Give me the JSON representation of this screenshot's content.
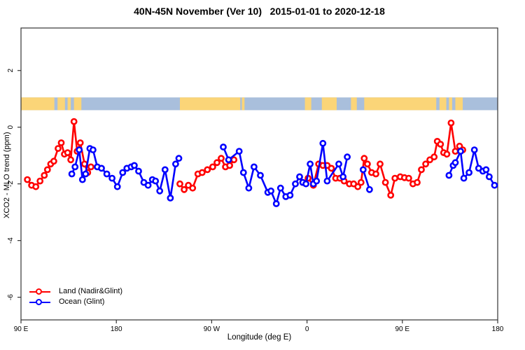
{
  "title": "40N-45N November (Ver 10)   2015-01-01 to 2020-12-18",
  "chart_data": {
    "type": "line",
    "title": "40N-45N November (Ver 10)   2015-01-01 to 2020-12-18",
    "xlabel": "Longitude (deg E)",
    "ylabel": "XCO2 - MLO trend (ppm)",
    "xlim": [
      90,
      540
    ],
    "ylim": [
      -6.8,
      3.5
    ],
    "grid": false,
    "legend_position": "bottom-left",
    "x_ticks": [
      {
        "lon": 90,
        "label": "90 E"
      },
      {
        "lon": 180,
        "label": "180"
      },
      {
        "lon": 270,
        "label": "90 W"
      },
      {
        "lon": 360,
        "label": "0"
      },
      {
        "lon": 450,
        "label": "90 E"
      },
      {
        "lon": 540,
        "label": "180"
      }
    ],
    "y_ticks": [
      {
        "v": 2,
        "label": "2"
      },
      {
        "v": 0,
        "label": "0"
      },
      {
        "v": -2,
        "label": "-2"
      },
      {
        "v": -4,
        "label": "-4"
      },
      {
        "v": -6,
        "label": "-6"
      }
    ],
    "legend": [
      {
        "name": "Land (Nadir&Glint)",
        "color": "#ff0000"
      },
      {
        "name": "Ocean (Glint)",
        "color": "#0000ff"
      }
    ],
    "map_strip": {
      "comment": "decorative latitude-band map strip: ocean base with land patches, plotted between values 0.6 and 1.05",
      "value_top": 1.05,
      "value_bottom": 0.6,
      "ocean_color": "#a9bfdc",
      "land_color": "#fbd578",
      "land_segments": [
        [
          90,
          121.5
        ],
        [
          124.5,
          131.5
        ],
        [
          134,
          137
        ],
        [
          140,
          147
        ],
        [
          240,
          297
        ],
        [
          298.5,
          301
        ],
        [
          358,
          364
        ],
        [
          374,
          388
        ],
        [
          401.5,
          407
        ],
        [
          414,
          482
        ],
        [
          485,
          491.5
        ],
        [
          494,
          497
        ],
        [
          500,
          507
        ]
      ]
    },
    "series": [
      {
        "name": "Land (Nadir&Glint)",
        "color": "#ff0000",
        "marker": "open-circle",
        "segments": [
          [
            [
              96,
              -1.85
            ],
            [
              100,
              -2.05
            ],
            [
              104,
              -2.1
            ],
            [
              108,
              -1.9
            ],
            [
              112,
              -1.7
            ],
            [
              115,
              -1.5
            ],
            [
              118,
              -1.3
            ],
            [
              121,
              -1.2
            ],
            [
              125,
              -0.75
            ],
            [
              128,
              -0.55
            ],
            [
              131,
              -0.95
            ],
            [
              134,
              -0.9
            ],
            [
              137,
              -1.15
            ],
            [
              140,
              0.2
            ],
            [
              143,
              -0.85
            ],
            [
              146,
              -0.55
            ],
            [
              150,
              -1.3
            ],
            [
              153,
              -1.6
            ],
            [
              156,
              -1.4
            ]
          ],
          [
            [
              240,
              -2.0
            ],
            [
              244,
              -2.2
            ],
            [
              248,
              -2.05
            ],
            [
              252,
              -2.15
            ],
            [
              257,
              -1.65
            ],
            [
              261,
              -1.6
            ],
            [
              266,
              -1.5
            ],
            [
              271,
              -1.4
            ],
            [
              275,
              -1.25
            ],
            [
              279,
              -1.1
            ],
            [
              283,
              -1.4
            ],
            [
              287,
              -1.35
            ],
            [
              291,
              -1.15
            ]
          ],
          [
            [
              356,
              -1.95
            ],
            [
              361,
              -1.8
            ],
            [
              366,
              -2.05
            ],
            [
              371,
              -1.3
            ],
            [
              375,
              -1.35
            ],
            [
              379,
              -1.35
            ],
            [
              383,
              -1.45
            ],
            [
              387,
              -1.8
            ],
            [
              391,
              -1.8
            ],
            [
              395,
              -1.9
            ],
            [
              400,
              -2.0
            ],
            [
              404,
              -2.0
            ],
            [
              408,
              -2.1
            ],
            [
              411,
              -1.95
            ],
            [
              414,
              -1.1
            ],
            [
              417,
              -1.3
            ],
            [
              421,
              -1.6
            ],
            [
              425,
              -1.65
            ],
            [
              429,
              -1.3
            ],
            [
              434,
              -1.95
            ],
            [
              439,
              -2.4
            ],
            [
              443,
              -1.8
            ],
            [
              448,
              -1.75
            ],
            [
              452,
              -1.78
            ],
            [
              456,
              -1.8
            ],
            [
              460,
              -2.0
            ],
            [
              464,
              -1.95
            ],
            [
              468,
              -1.5
            ],
            [
              472,
              -1.3
            ],
            [
              476,
              -1.15
            ],
            [
              480,
              -1.05
            ],
            [
              483,
              -0.5
            ],
            [
              486,
              -0.6
            ],
            [
              489,
              -0.9
            ],
            [
              492,
              -0.95
            ],
            [
              496,
              0.15
            ],
            [
              500,
              -0.85
            ],
            [
              504,
              -0.67
            ],
            [
              507,
              -0.8
            ]
          ]
        ]
      },
      {
        "name": "Ocean (Glint)",
        "color": "#0000ff",
        "marker": "open-circle",
        "segments": [
          [
            [
              138,
              -1.65
            ],
            [
              141,
              -1.4
            ],
            [
              145,
              -0.8
            ],
            [
              148,
              -1.85
            ],
            [
              151,
              -1.65
            ],
            [
              155,
              -0.75
            ],
            [
              158,
              -0.8
            ],
            [
              162,
              -1.4
            ],
            [
              166,
              -1.45
            ],
            [
              171,
              -1.65
            ],
            [
              176,
              -1.8
            ],
            [
              181,
              -2.1
            ],
            [
              186,
              -1.6
            ],
            [
              190,
              -1.45
            ],
            [
              194,
              -1.4
            ],
            [
              197,
              -1.35
            ],
            [
              201,
              -1.55
            ],
            [
              206,
              -1.95
            ],
            [
              210,
              -2.05
            ],
            [
              214,
              -1.85
            ],
            [
              217,
              -1.9
            ],
            [
              221,
              -2.25
            ],
            [
              226,
              -1.5
            ],
            [
              231,
              -2.5
            ],
            [
              236,
              -1.3
            ],
            [
              239,
              -1.1
            ]
          ],
          [
            [
              281,
              -0.7
            ],
            [
              286,
              -1.15
            ],
            [
              296,
              -0.85
            ],
            [
              300,
              -1.6
            ],
            [
              305,
              -2.15
            ],
            [
              310,
              -1.4
            ],
            [
              316,
              -1.7
            ],
            [
              323,
              -2.3
            ],
            [
              326,
              -2.25
            ],
            [
              331,
              -2.7
            ],
            [
              335,
              -2.15
            ],
            [
              340,
              -2.45
            ],
            [
              344,
              -2.4
            ],
            [
              349,
              -2.0
            ],
            [
              353,
              -1.75
            ],
            [
              356,
              -1.95
            ],
            [
              359,
              -2.0
            ],
            [
              363,
              -1.3
            ],
            [
              366,
              -2.0
            ],
            [
              369,
              -1.9
            ],
            [
              375,
              -0.57
            ],
            [
              379,
              -1.9
            ],
            [
              390,
              -1.3
            ],
            [
              394,
              -1.75
            ],
            [
              398,
              -1.05
            ]
          ],
          [
            [
              413,
              -1.5
            ],
            [
              419,
              -2.2
            ]
          ],
          [
            [
              494,
              -1.7
            ],
            [
              498,
              -1.35
            ],
            [
              500,
              -1.25
            ],
            [
              505,
              -0.85
            ],
            [
              508,
              -1.8
            ],
            [
              513,
              -1.6
            ],
            [
              518,
              -0.8
            ],
            [
              522,
              -1.45
            ],
            [
              526,
              -1.55
            ],
            [
              529,
              -1.5
            ],
            [
              532,
              -1.75
            ],
            [
              537,
              -2.05
            ]
          ]
        ]
      }
    ]
  },
  "axes_style": {
    "box_color": "#333333",
    "tick_color": "#333333",
    "label_color": "#000000"
  }
}
